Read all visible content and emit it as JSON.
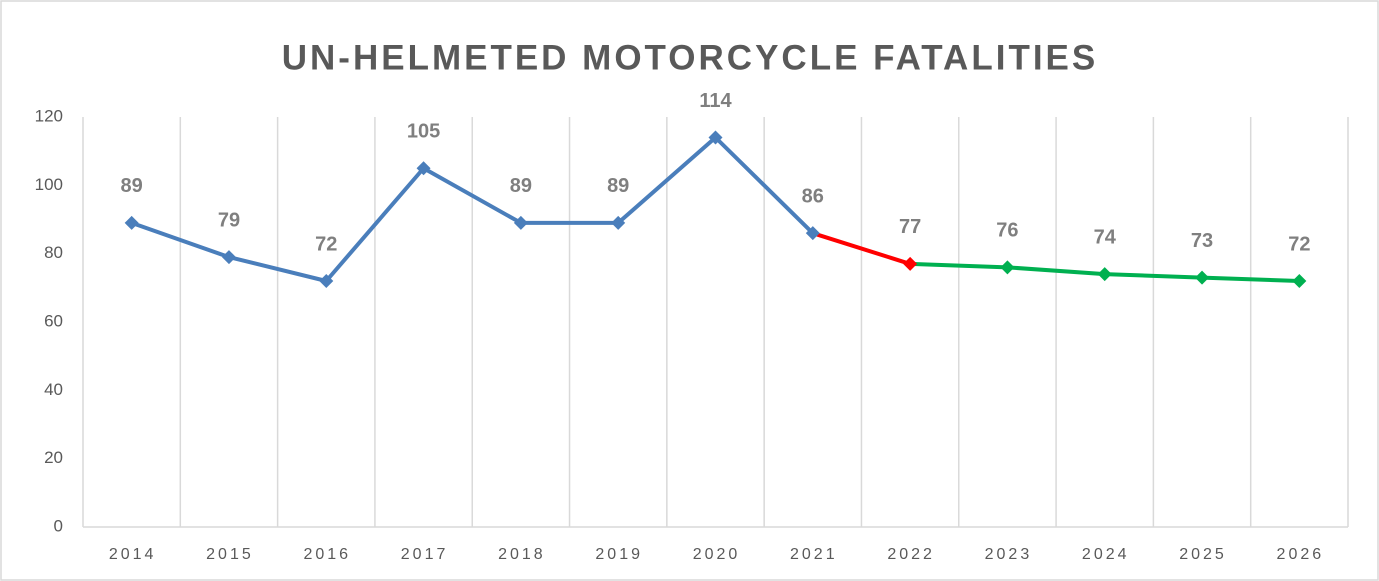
{
  "chart_data": {
    "type": "line",
    "title": "UN-HELMETED MOTORCYCLE FATALITIES",
    "categories": [
      "2014",
      "2015",
      "2016",
      "2017",
      "2018",
      "2019",
      "2020",
      "2021",
      "2022",
      "2023",
      "2024",
      "2025",
      "2026"
    ],
    "values": [
      89,
      79,
      72,
      105,
      89,
      89,
      114,
      86,
      77,
      76,
      74,
      73,
      72
    ],
    "colors": [
      "#4a7ebb",
      "#4a7ebb",
      "#4a7ebb",
      "#4a7ebb",
      "#4a7ebb",
      "#4a7ebb",
      "#4a7ebb",
      "#4a7ebb",
      "#ff0000",
      "#00b050",
      "#00b050",
      "#00b050",
      "#00b050"
    ],
    "ylim": [
      0,
      120
    ],
    "yticks": [
      0,
      20,
      40,
      60,
      80,
      100,
      120
    ],
    "grid": false
  }
}
